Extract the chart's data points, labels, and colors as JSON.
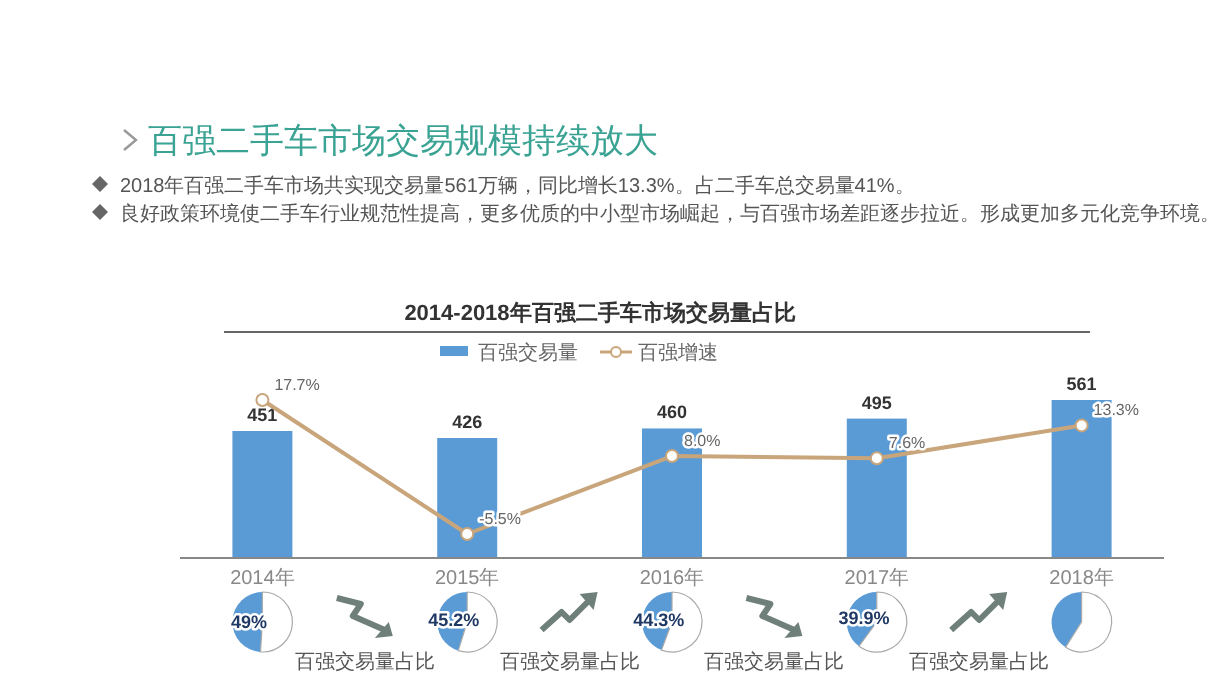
{
  "chart_data": [
    {
      "type": "bar",
      "title": "2014-2018年百强二手车市场交易量占比",
      "categories": [
        "2014年",
        "2015年",
        "2016年",
        "2017年",
        "2018年"
      ],
      "series": [
        {
          "name": "百强交易量",
          "color": "#5b9bd5",
          "values": [
            451,
            426,
            460,
            495,
            561
          ],
          "value_labels": [
            "451",
            "426",
            "460",
            "495",
            "561"
          ]
        },
        {
          "name": "百强增速",
          "type": "line",
          "axis": "y2",
          "color": "#c8a57a",
          "values": [
            17.7,
            -5.5,
            8.0,
            7.6,
            13.3
          ],
          "value_labels": [
            "17.7%",
            "-5.5%",
            "8.0%",
            "7.6%",
            "13.3%"
          ]
        }
      ],
      "marker": "circle",
      "legend": "top",
      "annotations": [
        "百强二手车市场交易规模持续放大",
        "2018年百强二手车市场共实现交易量561万辆，同比增长13.3%。占二手车总交易量41%。",
        "良好政策环境使二手车行业规范性提高，更多优质的中小型市场崛起，与百强市场差距逐步拉近。形成更加多元化竞争环境。",
        "百强交易量占比",
        "百强交易量占比",
        "百强交易量占比",
        "百强交易量占比"
      ]
    },
    {
      "type": "pie",
      "categories": [
        null,
        null
      ],
      "values": [
        49,
        51
      ],
      "colors": [
        "#5b9bd5",
        "#ffffff"
      ],
      "value_labels": [
        "49%",
        null
      ]
    },
    {
      "type": "pie",
      "categories": [
        null,
        null
      ],
      "values": [
        45.2,
        54.8
      ],
      "colors": [
        "#5b9bd5",
        "#ffffff"
      ],
      "value_labels": [
        "45.2%",
        null
      ]
    },
    {
      "type": "pie",
      "categories": [
        null,
        null
      ],
      "values": [
        44.3,
        55.7
      ],
      "colors": [
        "#5b9bd5",
        "#ffffff"
      ],
      "value_labels": [
        "44.3%",
        null
      ]
    },
    {
      "type": "pie",
      "categories": [
        null,
        null
      ],
      "values": [
        39.9,
        60.1
      ],
      "colors": [
        "#5b9bd5",
        "#ffffff"
      ],
      "value_labels": [
        "39.9%",
        null
      ]
    },
    {
      "type": "pie",
      "categories": [
        null,
        null
      ],
      "values": [
        41,
        59
      ],
      "colors": [
        "#5b9bd5",
        "#ffffff"
      ]
    }
  ]
}
